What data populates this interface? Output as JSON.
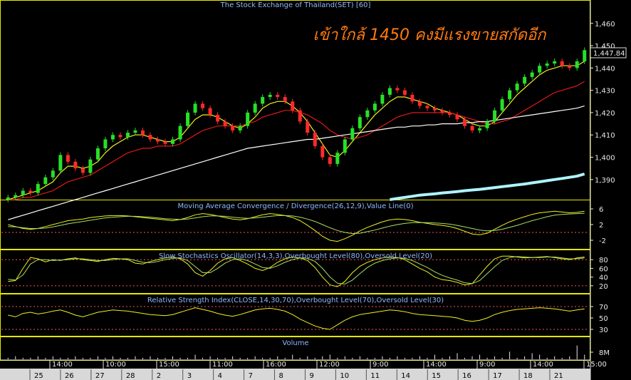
{
  "chart_data": {
    "type": "candlestick",
    "title": "The Stock Exchange of Thailand(SET) [60]",
    "annotation": "เข้าใกล้ 1450 คงมีแรงขายสกัดอีก",
    "last_price": "1,447.84",
    "price_axis": {
      "ticks": [
        "1,460",
        "1,450",
        "1,440",
        "1,430",
        "1,420",
        "1,410",
        "1,400",
        "1,390"
      ],
      "ylim": [
        1381,
        1466
      ]
    },
    "price_series": [
      {
        "name": "close",
        "values": [
          1382,
          1383,
          1385,
          1384,
          1388,
          1391,
          1394,
          1401,
          1398,
          1395,
          1393,
          1399,
          1404,
          1408,
          1410,
          1409,
          1411,
          1412,
          1410,
          1408,
          1407,
          1406,
          1408,
          1414,
          1420,
          1424,
          1422,
          1419,
          1416,
          1414,
          1412,
          1414,
          1420,
          1424,
          1427,
          1428,
          1427,
          1425,
          1421,
          1416,
          1411,
          1405,
          1400,
          1397,
          1402,
          1408,
          1413,
          1418,
          1421,
          1424,
          1428,
          1431,
          1430,
          1428,
          1425,
          1423,
          1422,
          1421,
          1420,
          1419,
          1417,
          1414,
          1412,
          1413,
          1416,
          1421,
          1426,
          1430,
          1433,
          1436,
          1438,
          1441,
          1442,
          1443,
          1441,
          1440,
          1443,
          1448
        ]
      },
      {
        "name": "ma-short",
        "values": [
          1381,
          1382,
          1383,
          1384,
          1385,
          1387,
          1389,
          1393,
          1396,
          1396,
          1395,
          1396,
          1398,
          1402,
          1405,
          1407,
          1409,
          1410,
          1410,
          1409,
          1408,
          1407,
          1407,
          1409,
          1413,
          1417,
          1419,
          1419,
          1418,
          1416,
          1414,
          1413,
          1415,
          1418,
          1422,
          1424,
          1425,
          1425,
          1423,
          1420,
          1416,
          1411,
          1406,
          1401,
          1400,
          1403,
          1407,
          1411,
          1415,
          1419,
          1422,
          1425,
          1427,
          1427,
          1426,
          1425,
          1424,
          1422,
          1421,
          1420,
          1419,
          1417,
          1415,
          1414,
          1414,
          1416,
          1420,
          1424,
          1428,
          1431,
          1434,
          1437,
          1439,
          1440,
          1441,
          1441,
          1441,
          1443
        ]
      },
      {
        "name": "ma-long",
        "values": [
          1381,
          1381,
          1382,
          1382,
          1383,
          1384,
          1385,
          1387,
          1389,
          1390,
          1391,
          1392,
          1394,
          1396,
          1398,
          1400,
          1402,
          1403,
          1404,
          1404,
          1405,
          1405,
          1405,
          1406,
          1408,
          1410,
          1412,
          1413,
          1414,
          1414,
          1414,
          1414,
          1415,
          1416,
          1418,
          1419,
          1420,
          1421,
          1421,
          1420,
          1419,
          1417,
          1415,
          1412,
          1410,
          1409,
          1408,
          1409,
          1410,
          1412,
          1414,
          1416,
          1418,
          1419,
          1420,
          1420,
          1420,
          1420,
          1420,
          1420,
          1419,
          1418,
          1417,
          1416,
          1415,
          1415,
          1416,
          1417,
          1419,
          1421,
          1423,
          1425,
          1427,
          1429,
          1430,
          1431,
          1432,
          1434
        ]
      },
      {
        "name": "ma-trend",
        "values": [
          1372,
          1373,
          1374,
          1375,
          1376,
          1377,
          1378,
          1379,
          1380,
          1381,
          1382,
          1383,
          1384,
          1385,
          1386,
          1387,
          1388,
          1389,
          1390,
          1391,
          1392,
          1393,
          1394,
          1395,
          1396,
          1397,
          1398,
          1399,
          1400,
          1401,
          1402,
          1403,
          1404,
          1404.5,
          1405,
          1405.5,
          1406,
          1406.5,
          1407,
          1407.5,
          1408,
          1408,
          1408.5,
          1409,
          1409.5,
          1410,
          1410.5,
          1411,
          1411.5,
          1412,
          1412.5,
          1413,
          1413.5,
          1413.5,
          1414,
          1414,
          1414.5,
          1414.5,
          1415,
          1415,
          1415,
          1415.5,
          1415.5,
          1416,
          1416,
          1416.5,
          1417,
          1417.5,
          1418,
          1418.5,
          1419,
          1419.5,
          1420,
          1420.5,
          1421,
          1421.5,
          1422,
          1423
        ]
      },
      {
        "name": "ma-cyan",
        "values": [
          null,
          null,
          null,
          null,
          null,
          null,
          null,
          null,
          null,
          null,
          null,
          null,
          null,
          null,
          null,
          null,
          null,
          null,
          null,
          null,
          null,
          null,
          null,
          null,
          null,
          null,
          null,
          null,
          null,
          null,
          null,
          null,
          null,
          null,
          null,
          null,
          null,
          null,
          null,
          null,
          null,
          null,
          null,
          null,
          null,
          null,
          null,
          null,
          null,
          null,
          null,
          1381,
          1381.5,
          1382,
          1382.5,
          1383,
          1383.3,
          1383.6,
          1384,
          1384.3,
          1384.6,
          1385,
          1385.3,
          1385.6,
          1386,
          1386.4,
          1386.8,
          1387.2,
          1387.6,
          1388,
          1388.5,
          1389,
          1389.5,
          1390,
          1390.5,
          1391,
          1391.5,
          1392.5
        ]
      }
    ],
    "panels": [
      {
        "name": "macd",
        "label": "Moving Average Convergence / Divergence(26,12,9),Value Line(0)",
        "ticks": [
          "6",
          "2",
          "-2"
        ],
        "ylim": [
          -4,
          8
        ],
        "reference_lines": [
          0
        ],
        "series": [
          {
            "values": [
              2,
              1.5,
              1,
              0.8,
              1,
              1.5,
              2,
              2.5,
              3,
              3.2,
              3.4,
              3.8,
              4,
              4.2,
              4.3,
              4.3,
              4.2,
              4,
              3.8,
              3.6,
              3.4,
              3.2,
              3,
              3.3,
              3.8,
              4.5,
              4.8,
              4.6,
              4.2,
              3.8,
              3.4,
              3.2,
              3.5,
              4,
              4.5,
              4.8,
              4.6,
              4.3,
              3.8,
              3,
              1.8,
              0.5,
              -1,
              -2,
              -2.3,
              -1.6,
              -0.7,
              0.4,
              1.3,
              2,
              2.7,
              3.2,
              3.4,
              3.3,
              3,
              2.6,
              2.3,
              2,
              1.8,
              1.5,
              1,
              0.3,
              -0.4,
              -0.6,
              -0.2,
              0.8,
              1.8,
              2.7,
              3.4,
              4,
              4.6,
              5,
              5.2,
              5.4,
              5.2,
              5,
              5.1,
              5.4
            ]
          },
          {
            "values": [
              1.5,
              1.4,
              1.2,
              1,
              1,
              1.1,
              1.4,
              1.8,
              2.2,
              2.5,
              2.8,
              3.1,
              3.4,
              3.7,
              3.9,
              4,
              4.1,
              4.1,
              4,
              3.9,
              3.7,
              3.5,
              3.4,
              3.3,
              3.4,
              3.7,
              4,
              4.2,
              4.2,
              4.1,
              3.9,
              3.7,
              3.6,
              3.7,
              3.9,
              4.1,
              4.3,
              4.3,
              4.2,
              3.9,
              3.4,
              2.8,
              2,
              1.2,
              0.5,
              0,
              -0.3,
              -0.2,
              0.2,
              0.6,
              1.1,
              1.6,
              2,
              2.3,
              2.5,
              2.5,
              2.5,
              2.4,
              2.3,
              2.1,
              1.8,
              1.4,
              1,
              0.6,
              0.4,
              0.5,
              0.8,
              1.3,
              1.8,
              2.4,
              3,
              3.5,
              4,
              4.4,
              4.6,
              4.7,
              4.8,
              4.9
            ]
          }
        ]
      },
      {
        "name": "stochastic",
        "label": "Slow Stochastics Oscillator(14,3,3),Overbought Level(80),Oversold Level(20)",
        "ticks": [
          "80",
          "60",
          "40",
          "20"
        ],
        "ylim": [
          5,
          100
        ],
        "reference_lines": [
          80,
          20
        ],
        "series": [
          {
            "values": [
              30,
              32,
              60,
              85,
              82,
              75,
              80,
              78,
              82,
              84,
              80,
              78,
              76,
              80,
              83,
              82,
              80,
              72,
              70,
              76,
              80,
              84,
              86,
              82,
              70,
              50,
              42,
              55,
              72,
              82,
              85,
              78,
              70,
              60,
              55,
              62,
              74,
              82,
              86,
              84,
              78,
              62,
              40,
              22,
              18,
              30,
              50,
              65,
              74,
              80,
              84,
              86,
              85,
              80,
              70,
              60,
              52,
              40,
              34,
              32,
              28,
              22,
              25,
              45,
              65,
              82,
              88,
              88,
              86,
              84,
              85,
              86,
              87,
              85,
              82,
              80,
              84,
              86
            ]
          },
          {
            "values": [
              35,
              33,
              45,
              70,
              80,
              80,
              78,
              79,
              80,
              82,
              82,
              80,
              78,
              78,
              80,
              82,
              82,
              78,
              74,
              73,
              76,
              80,
              83,
              84,
              78,
              64,
              50,
              50,
              60,
              72,
              80,
              82,
              78,
              70,
              62,
              60,
              66,
              74,
              80,
              84,
              83,
              76,
              60,
              40,
              26,
              24,
              33,
              48,
              62,
              72,
              78,
              82,
              84,
              83,
              78,
              70,
              62,
              52,
              44,
              38,
              33,
              27,
              25,
              32,
              48,
              64,
              78,
              85,
              87,
              86,
              85,
              85,
              86,
              86,
              84,
              82,
              82,
              84
            ]
          }
        ]
      },
      {
        "name": "rsi",
        "label": "Relative Strength Index(CLOSE,14,30,70),Overbought Level(70),Oversold Level(30)",
        "ticks": [
          "70",
          "50",
          "30"
        ],
        "ylim": [
          20,
          90
        ],
        "reference_lines": [
          70,
          30
        ],
        "series": [
          {
            "values": [
              55,
              52,
              58,
              60,
              57,
              59,
              62,
              64,
              60,
              55,
              52,
              56,
              60,
              62,
              64,
              63,
              62,
              60,
              58,
              56,
              55,
              54,
              56,
              60,
              64,
              68,
              65,
              62,
              58,
              55,
              53,
              56,
              60,
              64,
              66,
              67,
              65,
              62,
              56,
              48,
              42,
              36,
              32,
              30,
              38,
              46,
              52,
              56,
              58,
              60,
              62,
              64,
              63,
              61,
              58,
              56,
              55,
              54,
              53,
              52,
              50,
              46,
              44,
              46,
              50,
              56,
              60,
              63,
              65,
              66,
              67,
              68,
              67,
              66,
              64,
              62,
              64,
              66
            ]
          }
        ]
      },
      {
        "name": "volume",
        "label": "Volume",
        "ticks": [
          "8M"
        ],
        "ylim": [
          0,
          14
        ],
        "bars": [
          1,
          2,
          1,
          1,
          2,
          1,
          2,
          1,
          1,
          2,
          1,
          1,
          2,
          1,
          2,
          1,
          1,
          2,
          1,
          2,
          1,
          1,
          2,
          1,
          1,
          3,
          1,
          2,
          1,
          1,
          2,
          1,
          1,
          2,
          1,
          1,
          2,
          1,
          3,
          1,
          2,
          1,
          2,
          3,
          1,
          2,
          1,
          2,
          1,
          1,
          2,
          1,
          2,
          1,
          1,
          2,
          1,
          3,
          1,
          2,
          4,
          1,
          2,
          3,
          1,
          2,
          1,
          5,
          1,
          2,
          4,
          3,
          1,
          2,
          1,
          2,
          9,
          3
        ]
      }
    ],
    "time_labels": [
      "14:00",
      "10:00",
      "15:00",
      "11:00",
      "16:00",
      "12:00",
      "9:00",
      "14:00",
      "9:00",
      "14:00",
      "15:00"
    ],
    "date_labels": [
      "25",
      "26",
      "27",
      "28",
      "2",
      "3",
      "4",
      "7",
      "8",
      "9",
      "10",
      "11",
      "14",
      "15",
      "16",
      "17",
      "18",
      "21"
    ]
  }
}
